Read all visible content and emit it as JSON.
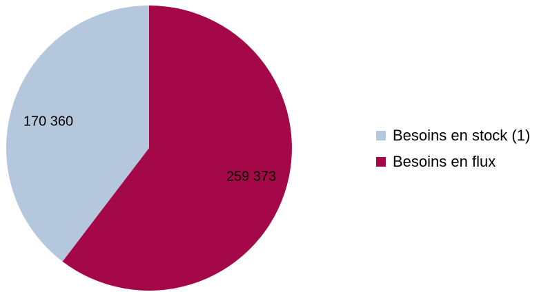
{
  "chart_data": {
    "type": "pie",
    "title": "",
    "categories": [
      "Besoins en stock (1)",
      "Besoins en flux"
    ],
    "values": [
      170360,
      259373
    ],
    "value_labels": [
      "170 360",
      "259 373"
    ],
    "colors": [
      "#b4c7dc",
      "#a50848"
    ],
    "legend_position": "right"
  }
}
